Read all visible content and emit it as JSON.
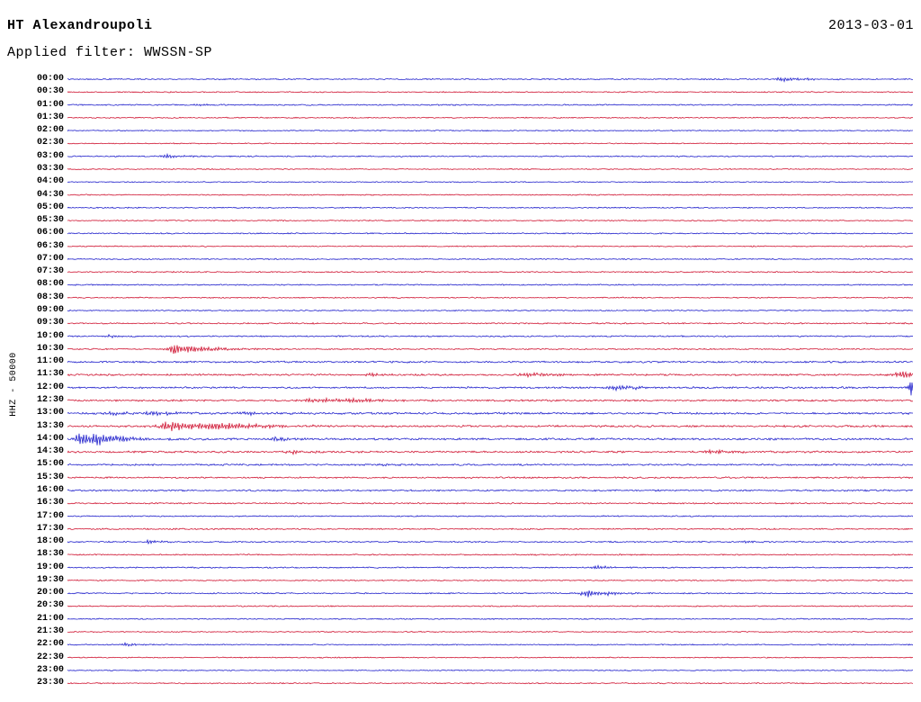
{
  "header": {
    "station": "HT Alexandroupoli",
    "date": "2013-03-01",
    "filter_label": "Applied filter: WWSSN-SP"
  },
  "axis": {
    "channel_label": "HHZ - 50000"
  },
  "colors": {
    "trace_blue": "#2222cc",
    "trace_red": "#d01835",
    "text": "#000000",
    "background": "#ffffff"
  },
  "chart_data": {
    "type": "line",
    "variant": "helicorder-seismogram",
    "title": "HT Alexandroupoli",
    "date_label": "2013-03-01",
    "filter": "WWSSN-SP",
    "ylabel": "HHZ - 50000",
    "minutes_per_row": 30,
    "legend_position": "none",
    "grid": false,
    "rows": [
      {
        "t": "00:00",
        "c": "b",
        "n": 0.55,
        "e": [
          {
            "p": 0.845,
            "a": 2.6,
            "r": 6,
            "d": 22
          }
        ]
      },
      {
        "t": "00:30",
        "c": "r",
        "n": 0.5,
        "e": []
      },
      {
        "t": "01:00",
        "c": "b",
        "n": 0.55,
        "e": [
          {
            "p": 0.155,
            "a": 1.1,
            "r": 5,
            "d": 14
          }
        ]
      },
      {
        "t": "01:30",
        "c": "r",
        "n": 0.5,
        "e": []
      },
      {
        "t": "02:00",
        "c": "b",
        "n": 0.45,
        "e": []
      },
      {
        "t": "02:30",
        "c": "r",
        "n": 0.45,
        "e": []
      },
      {
        "t": "03:00",
        "c": "b",
        "n": 0.55,
        "e": [
          {
            "p": 0.115,
            "a": 1.8,
            "r": 6,
            "d": 28
          }
        ]
      },
      {
        "t": "03:30",
        "c": "r",
        "n": 0.45,
        "e": []
      },
      {
        "t": "04:00",
        "c": "b",
        "n": 0.45,
        "e": []
      },
      {
        "t": "04:30",
        "c": "r",
        "n": 0.5,
        "e": []
      },
      {
        "t": "05:00",
        "c": "b",
        "n": 0.5,
        "e": []
      },
      {
        "t": "05:30",
        "c": "r",
        "n": 0.5,
        "e": []
      },
      {
        "t": "06:00",
        "c": "b",
        "n": 0.55,
        "e": []
      },
      {
        "t": "06:30",
        "c": "r",
        "n": 0.5,
        "e": []
      },
      {
        "t": "07:00",
        "c": "b",
        "n": 0.5,
        "e": []
      },
      {
        "t": "07:30",
        "c": "r",
        "n": 0.55,
        "e": []
      },
      {
        "t": "08:00",
        "c": "b",
        "n": 0.55,
        "e": []
      },
      {
        "t": "08:30",
        "c": "r",
        "n": 0.5,
        "e": []
      },
      {
        "t": "09:00",
        "c": "b",
        "n": 0.5,
        "e": []
      },
      {
        "t": "09:30",
        "c": "r",
        "n": 0.6,
        "e": []
      },
      {
        "t": "10:00",
        "c": "b",
        "n": 0.6,
        "e": [
          {
            "p": 0.05,
            "a": 1.3,
            "r": 4,
            "d": 12
          }
        ]
      },
      {
        "t": "10:30",
        "c": "r",
        "n": 0.6,
        "e": [
          {
            "p": 0.125,
            "a": 5.5,
            "r": 5,
            "d": 40
          }
        ]
      },
      {
        "t": "11:00",
        "c": "b",
        "n": 0.8,
        "e": []
      },
      {
        "t": "11:30",
        "c": "r",
        "n": 0.8,
        "e": [
          {
            "p": 0.36,
            "a": 1.6,
            "r": 8,
            "d": 22
          },
          {
            "p": 0.545,
            "a": 2.2,
            "r": 8,
            "d": 26
          },
          {
            "p": 0.985,
            "a": 3.4,
            "r": 6,
            "d": 26
          }
        ]
      },
      {
        "t": "12:00",
        "c": "b",
        "n": 0.8,
        "e": [
          {
            "p": 0.645,
            "a": 2.2,
            "r": 10,
            "d": 36
          },
          {
            "p": 0.998,
            "a": 9,
            "r": 2,
            "d": 2
          }
        ]
      },
      {
        "t": "12:30",
        "c": "r",
        "n": 0.8,
        "e": [
          {
            "p": 0.285,
            "a": 2.2,
            "r": 10,
            "d": 40
          },
          {
            "p": 0.34,
            "a": 1.8,
            "r": 8,
            "d": 26
          }
        ]
      },
      {
        "t": "13:00",
        "c": "b",
        "n": 0.9,
        "e": [
          {
            "p": 0.05,
            "a": 1.8,
            "r": 8,
            "d": 26
          },
          {
            "p": 0.1,
            "a": 2.0,
            "r": 8,
            "d": 30
          },
          {
            "p": 0.21,
            "a": 1.4,
            "r": 10,
            "d": 36
          }
        ]
      },
      {
        "t": "13:30",
        "c": "r",
        "n": 0.9,
        "e": [
          {
            "p": 0.115,
            "a": 4.6,
            "r": 6,
            "d": 55
          },
          {
            "p": 0.175,
            "a": 2.4,
            "r": 10,
            "d": 45
          }
        ]
      },
      {
        "t": "14:00",
        "c": "b",
        "n": 0.9,
        "e": [
          {
            "p": 0.012,
            "a": 6,
            "r": 3,
            "d": 26
          },
          {
            "p": 0.032,
            "a": 3.4,
            "r": 5,
            "d": 36
          },
          {
            "p": 0.245,
            "a": 2.2,
            "r": 6,
            "d": 22
          }
        ]
      },
      {
        "t": "14:30",
        "c": "r",
        "n": 0.85,
        "e": [
          {
            "p": 0.265,
            "a": 1.8,
            "r": 6,
            "d": 18
          },
          {
            "p": 0.76,
            "a": 1.8,
            "r": 8,
            "d": 22
          }
        ]
      },
      {
        "t": "15:00",
        "c": "b",
        "n": 0.75,
        "e": [
          {
            "p": 0.375,
            "a": 1.4,
            "r": 5,
            "d": 14
          }
        ]
      },
      {
        "t": "15:30",
        "c": "r",
        "n": 0.7,
        "e": []
      },
      {
        "t": "16:00",
        "c": "b",
        "n": 0.7,
        "e": []
      },
      {
        "t": "16:30",
        "c": "r",
        "n": 0.6,
        "e": []
      },
      {
        "t": "17:00",
        "c": "b",
        "n": 0.55,
        "e": []
      },
      {
        "t": "17:30",
        "c": "r",
        "n": 0.6,
        "e": []
      },
      {
        "t": "18:00",
        "c": "b",
        "n": 0.6,
        "e": [
          {
            "p": 0.095,
            "a": 1.6,
            "r": 5,
            "d": 16
          },
          {
            "p": 0.8,
            "a": 1.3,
            "r": 5,
            "d": 14
          }
        ]
      },
      {
        "t": "18:30",
        "c": "r",
        "n": 0.55,
        "e": []
      },
      {
        "t": "19:00",
        "c": "b",
        "n": 0.55,
        "e": [
          {
            "p": 0.625,
            "a": 2.2,
            "r": 5,
            "d": 18
          }
        ]
      },
      {
        "t": "19:30",
        "c": "r",
        "n": 0.5,
        "e": []
      },
      {
        "t": "20:00",
        "c": "b",
        "n": 0.55,
        "e": [
          {
            "p": 0.615,
            "a": 3.4,
            "r": 8,
            "d": 30
          }
        ]
      },
      {
        "t": "20:30",
        "c": "r",
        "n": 0.5,
        "e": []
      },
      {
        "t": "21:00",
        "c": "b",
        "n": 0.5,
        "e": []
      },
      {
        "t": "21:30",
        "c": "r",
        "n": 0.45,
        "e": []
      },
      {
        "t": "22:00",
        "c": "b",
        "n": 0.5,
        "e": [
          {
            "p": 0.068,
            "a": 2.2,
            "r": 4,
            "d": 14
          }
        ]
      },
      {
        "t": "22:30",
        "c": "r",
        "n": 0.45,
        "e": []
      },
      {
        "t": "23:00",
        "c": "b",
        "n": 0.45,
        "e": []
      },
      {
        "t": "23:30",
        "c": "r",
        "n": 0.5,
        "e": []
      }
    ],
    "row_encoding": "t=start time of 30-min trace, c=trace color (b=blue,r=red), n=background noise amplitude px, e=visible seismic bursts (p=position fraction along row, a=peak amplitude px, r=rise length px, d=decay length px)"
  }
}
